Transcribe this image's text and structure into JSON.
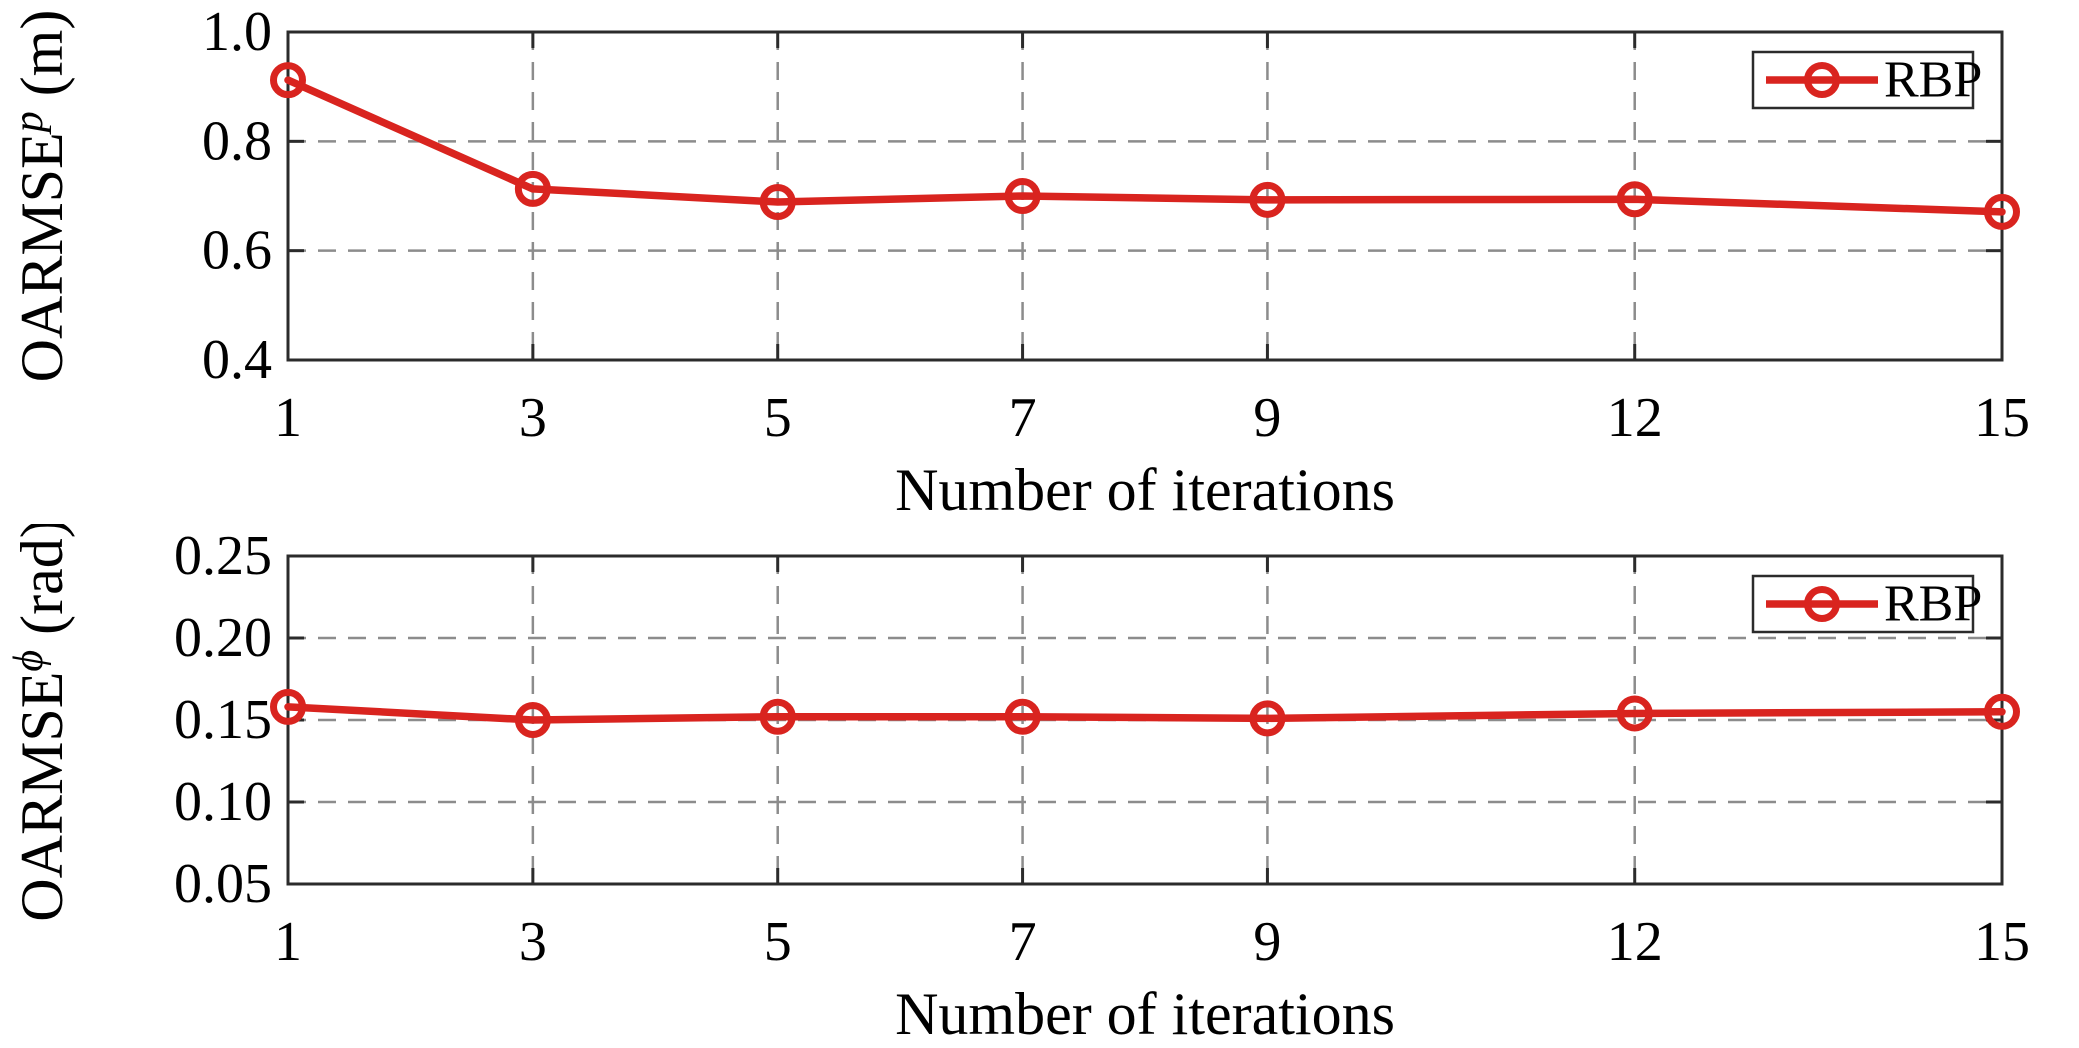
{
  "figure": {
    "background": "#ffffff",
    "colors": {
      "series": "#d9241f",
      "frame": "#2b2b2b",
      "grid": "#8c8c8c",
      "text": "#000000",
      "legend_border": "#2b2b2b",
      "legend_fill": "#ffffff"
    }
  },
  "chart_data": [
    {
      "type": "line",
      "id": "oarmse-position",
      "title": "",
      "xlabel": "Number of iterations",
      "ylabel": {
        "base": "OARMSE",
        "superscript": "p",
        "unit": " (m)"
      },
      "xlim": [
        1,
        15
      ],
      "ylim": [
        0.4,
        1.0
      ],
      "x": [
        1,
        3,
        5,
        7,
        9,
        12,
        15
      ],
      "xtick_labels": [
        "1",
        "3",
        "5",
        "7",
        "9",
        "12",
        "15"
      ],
      "yticks": [
        0.4,
        0.6,
        0.8,
        1.0
      ],
      "ytick_labels": [
        "0.4",
        "0.6",
        "0.8",
        "1.0"
      ],
      "grid": true,
      "legend": {
        "label": "RBP",
        "position": "top-right"
      },
      "series": [
        {
          "name": "RBP",
          "values": [
            0.912,
            0.713,
            0.689,
            0.7,
            0.693,
            0.694,
            0.671
          ]
        }
      ]
    },
    {
      "type": "line",
      "id": "oarmse-heading",
      "title": "",
      "xlabel": "Number of iterations",
      "ylabel": {
        "base": "OARMSE",
        "superscript": "ϕ",
        "unit": " (rad)"
      },
      "xlim": [
        1,
        15
      ],
      "ylim": [
        0.05,
        0.25
      ],
      "x": [
        1,
        3,
        5,
        7,
        9,
        12,
        15
      ],
      "xtick_labels": [
        "1",
        "3",
        "5",
        "7",
        "9",
        "12",
        "15"
      ],
      "yticks": [
        0.05,
        0.1,
        0.15,
        0.2,
        0.25
      ],
      "ytick_labels": [
        "0.05",
        "0.10",
        "0.15",
        "0.20",
        "0.25"
      ],
      "grid": true,
      "legend": {
        "label": "RBP",
        "position": "top-right"
      },
      "series": [
        {
          "name": "RBP",
          "values": [
            0.158,
            0.15,
            0.152,
            0.152,
            0.151,
            0.154,
            0.155
          ]
        }
      ]
    }
  ]
}
